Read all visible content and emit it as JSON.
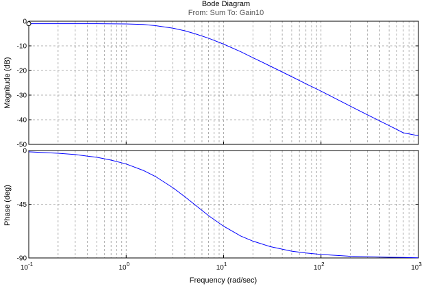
{
  "chart_data": {
    "type": "line",
    "title": "Bode Diagram",
    "subtitle": "From: Sum  To: Gain10",
    "xlabel": "Frequency  (rad/sec)",
    "xscale": "log",
    "xlim": [
      0.1,
      1000
    ],
    "x_ticks": [
      {
        "base": "10",
        "exp": "-1"
      },
      {
        "base": "10",
        "exp": "0"
      },
      {
        "base": "10",
        "exp": "1"
      },
      {
        "base": "10",
        "exp": "2"
      },
      {
        "base": "10",
        "exp": "3"
      }
    ],
    "grid": true,
    "panels": [
      {
        "ylabel": "Magnitude (dB)",
        "ylim": [
          -50,
          0
        ],
        "yticks": [
          0,
          -10,
          -20,
          -30,
          -40,
          -50
        ],
        "ytick_labels": [
          "0",
          "-10",
          "-20",
          "-30",
          "-40",
          "-50"
        ],
        "x": [
          0.1,
          0.2,
          0.5,
          1,
          1.5,
          2,
          3,
          4,
          5,
          7,
          10,
          15,
          20,
          30,
          50,
          70,
          100,
          200,
          300,
          500,
          700,
          1000
        ],
        "y": [
          -1.0,
          -1.0,
          -1.0,
          -1.1,
          -1.3,
          -1.8,
          -2.8,
          -3.9,
          -5.0,
          -6.9,
          -9.3,
          -12.4,
          -14.8,
          -18.2,
          -22.5,
          -25.4,
          -28.4,
          -34.5,
          -38.0,
          -42.4,
          -45.3,
          -46.5
        ]
      },
      {
        "ylabel": "Phase (deg)",
        "ylim": [
          -90,
          0
        ],
        "yticks": [
          0,
          -45,
          -90
        ],
        "ytick_labels": [
          "0",
          "-45",
          "-90"
        ],
        "x": [
          0.1,
          0.2,
          0.3,
          0.5,
          0.7,
          1,
          1.5,
          2,
          3,
          4,
          5,
          7,
          10,
          15,
          20,
          30,
          50,
          70,
          100,
          200,
          300,
          500,
          700,
          1000
        ],
        "y": [
          -1.1,
          -2.3,
          -3.4,
          -5.7,
          -8.0,
          -11.3,
          -16.7,
          -21.8,
          -31.0,
          -38.7,
          -45.0,
          -54.5,
          -63.4,
          -71.6,
          -75.9,
          -80.5,
          -84.3,
          -85.9,
          -87.1,
          -88.6,
          -89.0,
          -89.4,
          -89.6,
          -89.8
        ]
      }
    ]
  }
}
